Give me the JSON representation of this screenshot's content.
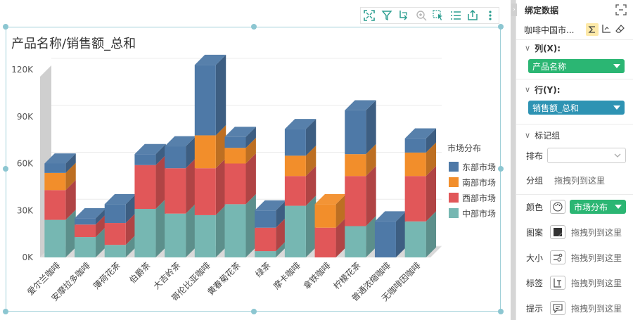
{
  "toolbar": {
    "icons": [
      "fullscreen-icon",
      "filter-icon",
      "drill-icon",
      "zoom-icon",
      "select-icon",
      "list-icon",
      "export-icon",
      "more-icon"
    ]
  },
  "chart_data": {
    "type": "stacked-bar-3d",
    "title": "产品名称/销售额_总和",
    "xlabel": "",
    "ylabel": "",
    "ylim": [
      0,
      120000
    ],
    "yticks": [
      0,
      30000,
      60000,
      90000,
      120000
    ],
    "ytick_labels": [
      "0K",
      "30K",
      "60K",
      "90K",
      "120K"
    ],
    "categories": [
      "爱尔兰咖啡",
      "安摩拉多咖啡",
      "薄荷花茶",
      "伯爵茶",
      "大吉岭茶",
      "哥伦比亚咖啡",
      "黄春菊花茶",
      "绿茶",
      "摩卡咖啡",
      "拿铁咖啡",
      "柠檬花茶",
      "普通浓缩咖啡",
      "无咖啡因咖啡"
    ],
    "legend_title": "市场分布",
    "legend_position": "right",
    "series": [
      {
        "name": "中部市场",
        "color": "#76b7b2",
        "values": [
          24000,
          13000,
          8000,
          31000,
          28000,
          27000,
          34000,
          4000,
          33000,
          0,
          20000,
          0,
          23000
        ]
      },
      {
        "name": "西部市场",
        "color": "#e15759",
        "values": [
          19000,
          8000,
          14000,
          28000,
          29000,
          30000,
          26000,
          15000,
          19000,
          19000,
          32000,
          0,
          29000
        ]
      },
      {
        "name": "南部市场",
        "color": "#f28e2b",
        "values": [
          11000,
          0,
          0,
          0,
          0,
          21000,
          10000,
          0,
          13000,
          15000,
          14000,
          0,
          15000
        ]
      },
      {
        "name": "东部市场",
        "color": "#4e79a7",
        "values": [
          6000,
          4000,
          12000,
          7000,
          14000,
          45000,
          7000,
          11000,
          17000,
          0,
          28000,
          23000,
          9000
        ]
      }
    ]
  },
  "panel": {
    "title": "绑定数据",
    "dataset": "咖啡中国市...",
    "columns_label": "列(X):",
    "columns_field": "产品名称",
    "rows_label": "行(Y):",
    "rows_field": "销售额_总和",
    "marks_label": "标记组",
    "layout_label": "排布",
    "group_label": "分组",
    "group_hint": "拖拽列到这里",
    "color_label": "颜色",
    "color_field": "市场分布",
    "pattern_label": "图案",
    "pattern_hint": "拖拽列到这里",
    "size_label": "大小",
    "size_hint": "拖拽列到这里",
    "tag_label": "标签",
    "tag_hint": "拖拽列到这里",
    "tooltip_label": "提示",
    "tooltip_hint": "拖拽列到这里"
  }
}
